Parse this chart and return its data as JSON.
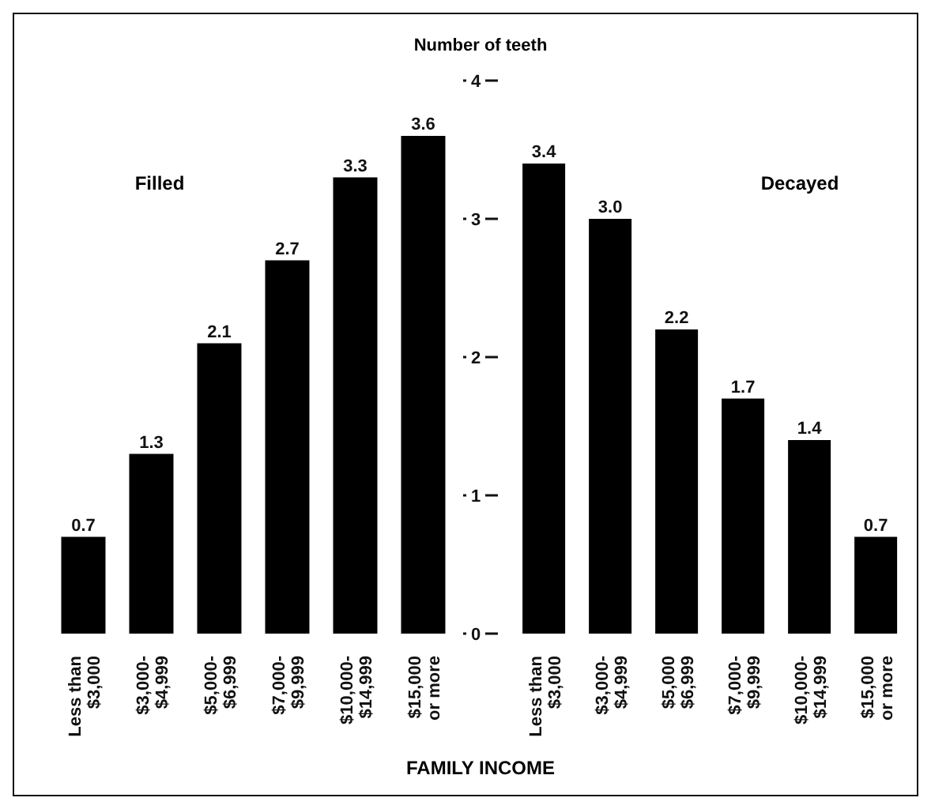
{
  "chart_data": [
    {
      "type": "bar",
      "title": "Filled",
      "categories": [
        "Less than\n$3,000",
        "$3,000-\n$4,999",
        "$5,000-\n$6,999",
        "$7,000-\n$9,999",
        "$10,000-\n$14,999",
        "$15,000\nor more"
      ],
      "values": [
        0.7,
        1.3,
        2.1,
        2.7,
        3.3,
        3.6
      ],
      "value_labels": [
        "0.7",
        "1.3",
        "2.1",
        "2.7",
        "3.3",
        "3.6"
      ],
      "color": "#000000",
      "ylim": [
        0,
        4
      ],
      "yticks": [
        0,
        1,
        2,
        3,
        4
      ],
      "tick_labels": "x"
    },
    {
      "type": "bar",
      "title": "Decayed",
      "ylabel": "Number of teeth",
      "xlabel": "FAMILY INCOME",
      "categories": [
        "Less than\n$3,000",
        "$3,000-\n$4,999",
        "$5,000\n$6,999",
        "$7,000-\n$9,999",
        "$10,000-\n$14,999",
        "$15,000\nor more"
      ],
      "values": [
        3.4,
        3.0,
        2.2,
        1.7,
        1.4,
        0.7
      ],
      "value_labels": [
        "3.4",
        "3.0",
        "2.2",
        "1.7",
        "1.4",
        "0.7"
      ],
      "color": "#000000",
      "ylim": [
        0,
        4
      ],
      "yticks": [
        0,
        1,
        2,
        3,
        4
      ]
    }
  ]
}
